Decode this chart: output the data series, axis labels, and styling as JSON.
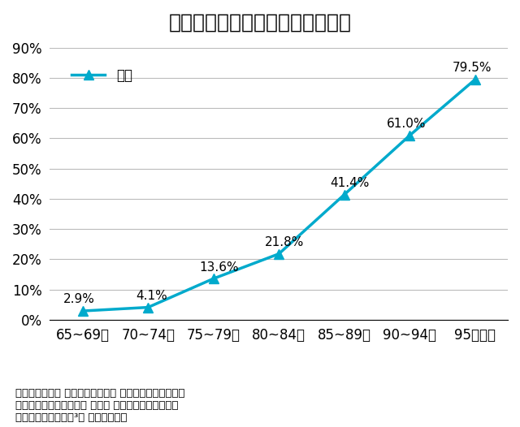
{
  "title": "図１　年齢階級別の認知症有病率",
  "categories": [
    "65~69歳",
    "70~74歳",
    "75~79歳",
    "80~84歳",
    "85~89歳",
    "90~94歳",
    "95歳以上"
  ],
  "values": [
    2.9,
    4.1,
    13.6,
    21.8,
    41.4,
    61.0,
    79.5
  ],
  "labels": [
    "2.9%",
    "4.1%",
    "13.6%",
    "21.8%",
    "41.4%",
    "61.0%",
    "79.5%"
  ],
  "line_color": "#00AACC",
  "marker": "^",
  "marker_size": 8,
  "legend_label": "全体",
  "ylim": [
    0,
    90
  ],
  "yticks": [
    0,
    10,
    20,
    30,
    40,
    50,
    60,
    70,
    80,
    90
  ],
  "ytick_labels": [
    "0%",
    "10%",
    "20%",
    "30%",
    "40%",
    "50%",
    "60%",
    "70%",
    "80%",
    "90%"
  ],
  "grid_color": "#BBBBBB",
  "background_color": "#FFFFFF",
  "title_fontsize": 18,
  "axis_fontsize": 12,
  "label_fontsize": 11,
  "legend_fontsize": 12,
  "source_line1": "出所：内閣官房 健康・医療戦略室 第２回認知症施策推進",
  "source_line2": "　　のための有識者会議 資料１ 認知症年齢別有病率の",
  "source_line3": "　　推移等について³） より一部改変"
}
